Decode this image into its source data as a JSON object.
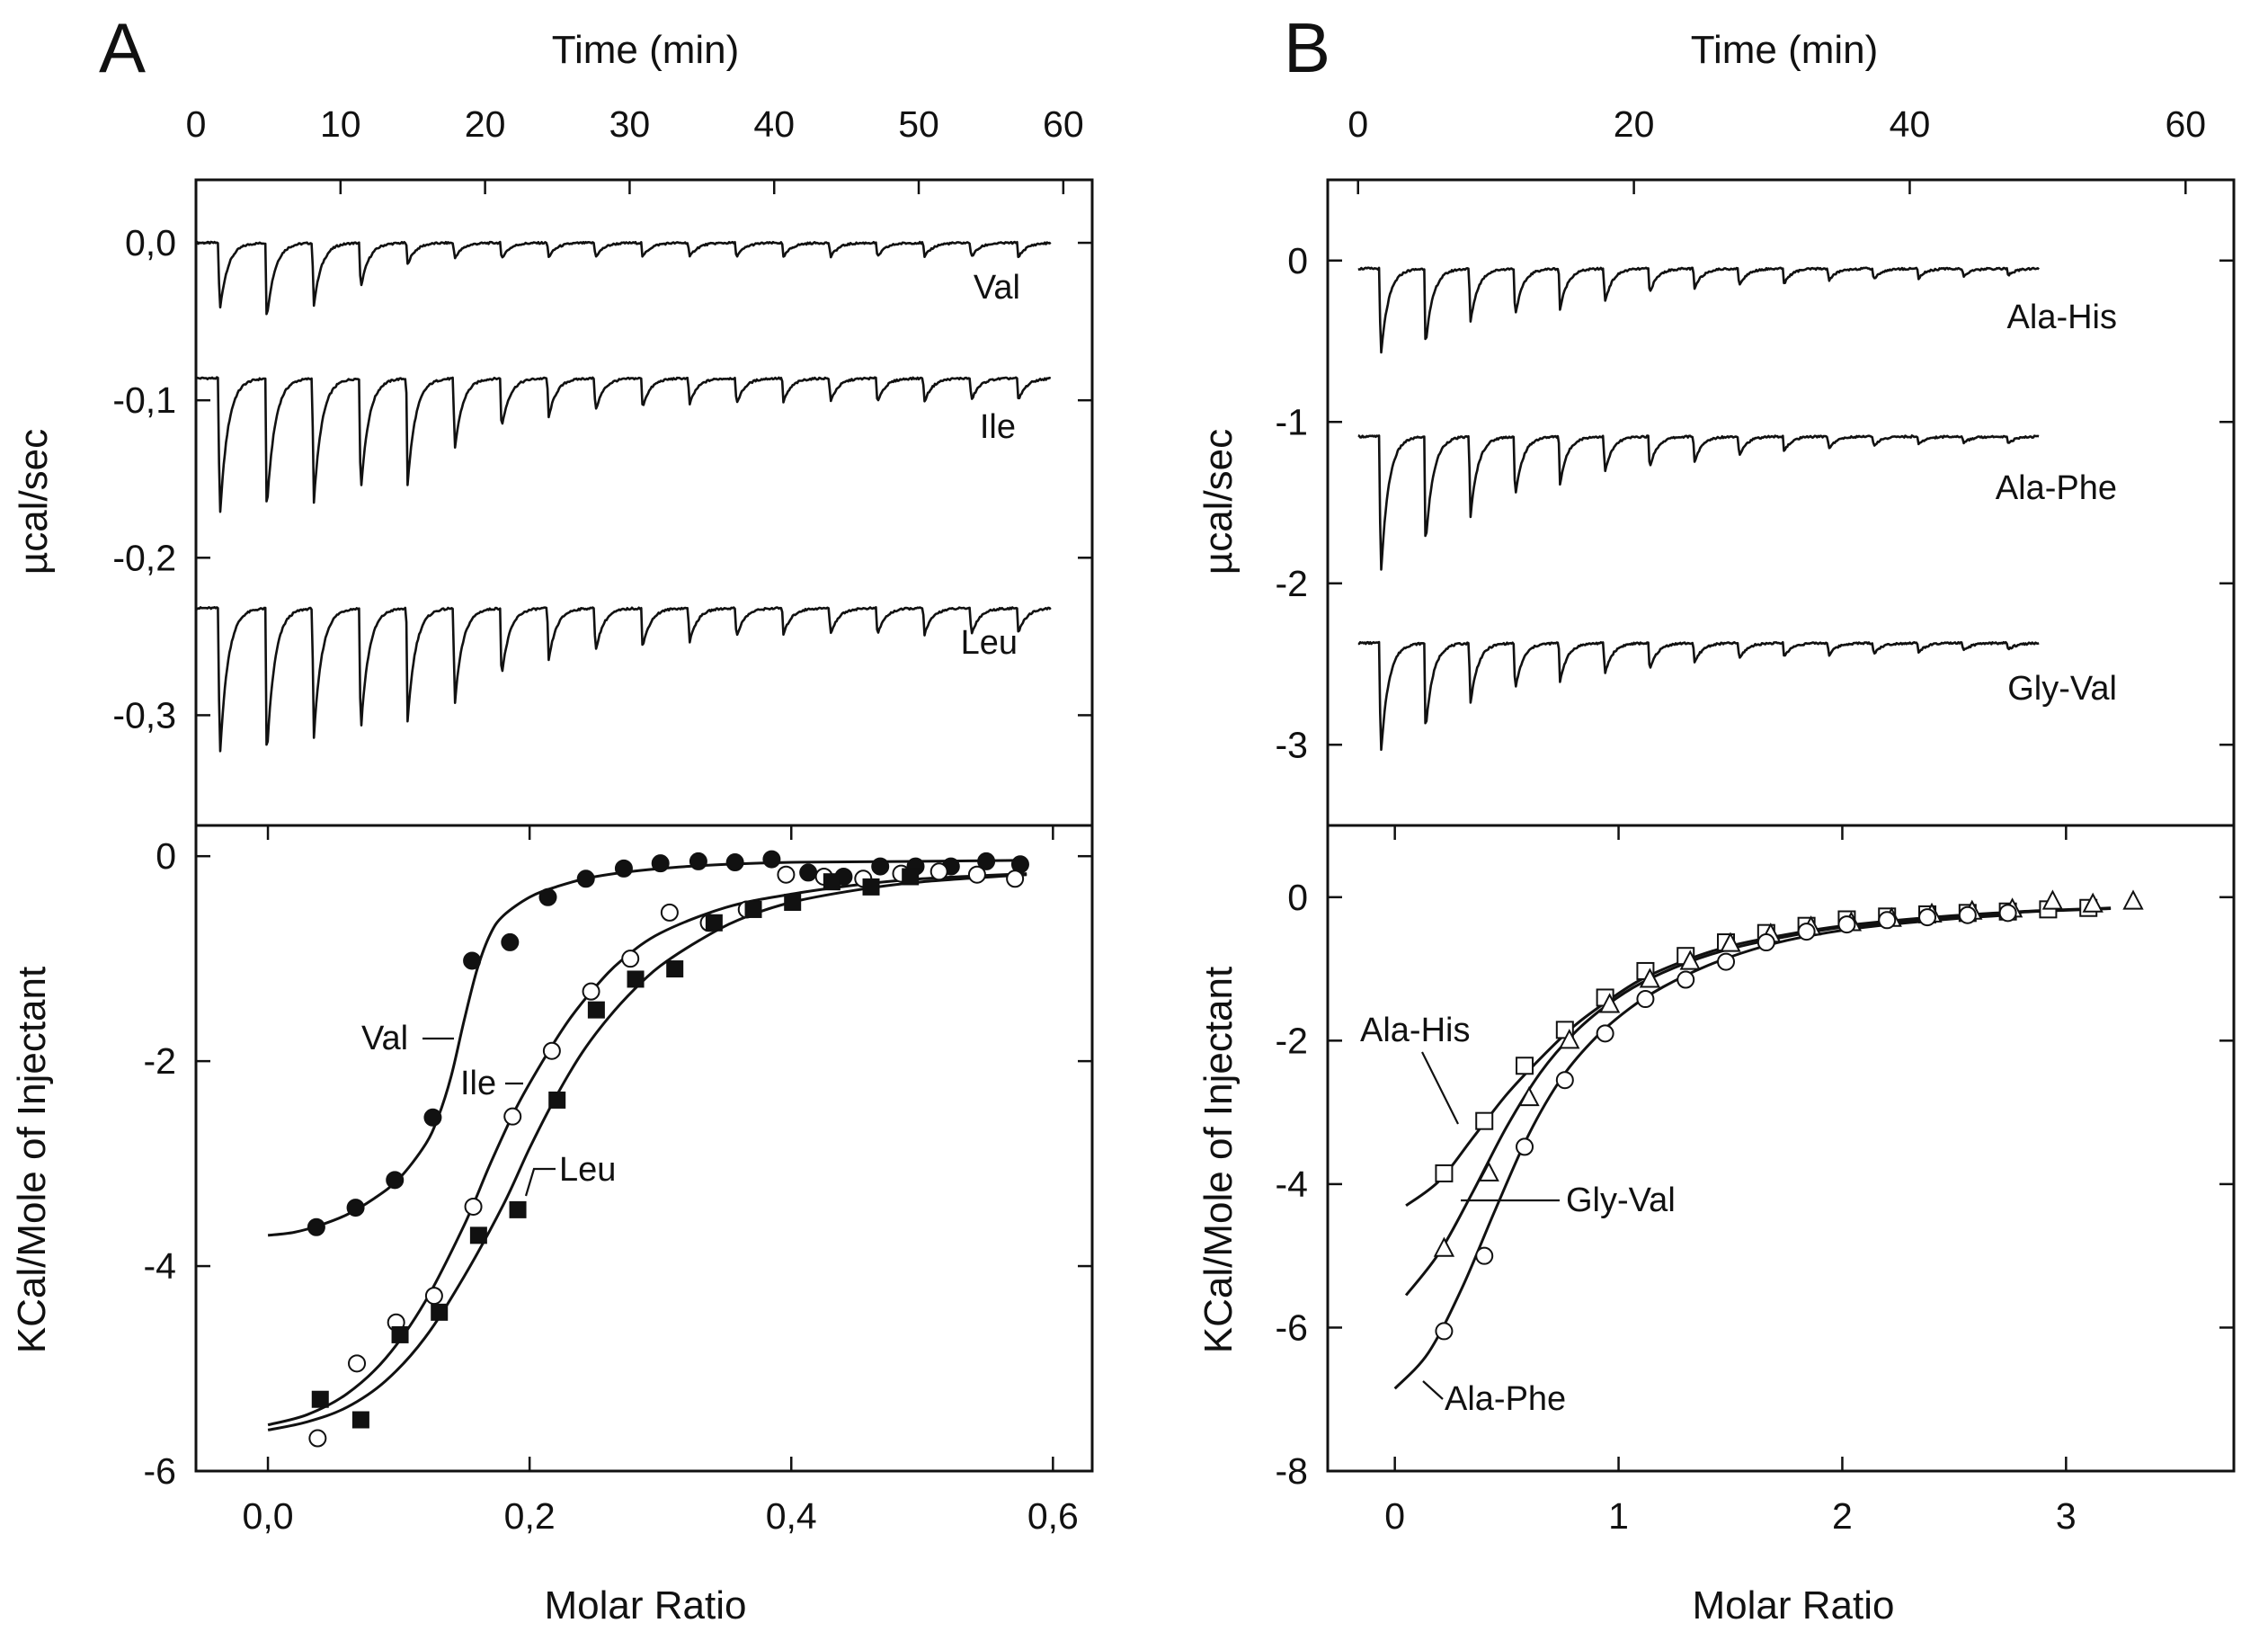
{
  "chart_data": [
    {
      "panel": "A",
      "type": "line",
      "top": {
        "xlabel": "Time (min)",
        "ylabel": "µcal/sec",
        "xticks": [
          "0",
          "10",
          "20",
          "30",
          "40",
          "50",
          "60"
        ],
        "yticks": [
          "0,0",
          "-0,1",
          "-0,2",
          "-0,3"
        ],
        "xlim": [
          0,
          62
        ],
        "ylim": [
          -0.37,
          0.04
        ],
        "grid": false,
        "interval_min": 3.25,
        "traces": [
          {
            "name": "Val",
            "baseline": 0.0,
            "peak_depths": [
              0.052,
              0.058,
              0.048,
              0.035,
              0.016,
              0.012,
              0.012,
              0.011,
              0.011,
              0.011,
              0.011,
              0.011,
              0.011,
              0.011,
              0.011,
              0.011,
              0.011,
              0.011
            ]
          },
          {
            "name": "Ile",
            "baseline": -0.086,
            "peak_depths": [
              0.108,
              0.101,
              0.096,
              0.088,
              0.08,
              0.055,
              0.038,
              0.03,
              0.025,
              0.022,
              0.02,
              0.02,
              0.018,
              0.018,
              0.018,
              0.018,
              0.017,
              0.017
            ]
          },
          {
            "name": "Leu",
            "baseline": -0.232,
            "peak_depths": [
              0.115,
              0.113,
              0.1,
              0.095,
              0.085,
              0.074,
              0.052,
              0.04,
              0.033,
              0.03,
              0.026,
              0.022,
              0.02,
              0.02,
              0.02,
              0.02,
              0.02,
              0.019
            ]
          }
        ]
      },
      "bottom": {
        "xlabel": "Molar Ratio",
        "ylabel": "KCal/Mole of Injectant",
        "xticks": [
          "0,0",
          "0,2",
          "0,4",
          "0,6"
        ],
        "yticks": [
          "0",
          "-2",
          "-4",
          "-6"
        ],
        "xlim": [
          -0.055,
          0.63
        ],
        "ylim": [
          -6.0,
          0.3
        ],
        "grid": false,
        "series": [
          {
            "name": "Val",
            "marker": "filled-circle",
            "x": [
              0.037,
              0.067,
              0.097,
              0.126,
              0.156,
              0.185,
              0.214,
              0.243,
              0.272,
              0.3,
              0.329,
              0.357,
              0.385,
              0.413,
              0.44,
              0.468,
              0.495,
              0.522,
              0.549,
              0.575
            ],
            "y": [
              -3.62,
              -3.43,
              -3.16,
              -2.55,
              -1.02,
              -0.84,
              -0.4,
              -0.22,
              -0.12,
              -0.07,
              -0.05,
              -0.06,
              -0.03,
              -0.16,
              -0.2,
              -0.1,
              -0.1,
              -0.1,
              -0.05,
              -0.08
            ]
          },
          {
            "name": "Ile",
            "marker": "open-circle",
            "x": [
              0.038,
              0.068,
              0.098,
              0.127,
              0.157,
              0.187,
              0.217,
              0.247,
              0.277,
              0.307,
              0.337,
              0.366,
              0.396,
              0.425,
              0.455,
              0.484,
              0.513,
              0.542,
              0.571
            ],
            "y": [
              -5.68,
              -4.95,
              -4.55,
              -4.29,
              -3.42,
              -2.54,
              -1.9,
              -1.32,
              -1.0,
              -0.55,
              -0.65,
              -0.52,
              -0.18,
              -0.2,
              -0.22,
              -0.17,
              -0.15,
              -0.18,
              -0.22
            ]
          },
          {
            "name": "Leu",
            "marker": "filled-square",
            "x": [
              0.04,
              0.071,
              0.101,
              0.131,
              0.161,
              0.191,
              0.221,
              0.251,
              0.281,
              0.311,
              0.341,
              0.371,
              0.401,
              0.431,
              0.461,
              0.491
            ],
            "y": [
              -5.3,
              -5.5,
              -4.67,
              -4.45,
              -3.7,
              -3.45,
              -2.38,
              -1.5,
              -1.2,
              -1.1,
              -0.65,
              -0.52,
              -0.45,
              -0.25,
              -0.3,
              -0.2
            ]
          }
        ],
        "fits": [
          {
            "name": "Val",
            "x": [
              0.0,
              0.02,
              0.04,
              0.06,
              0.08,
              0.1,
              0.12,
              0.13,
              0.14,
              0.15,
              0.16,
              0.17,
              0.18,
              0.2,
              0.22,
              0.25,
              0.3,
              0.35,
              0.4,
              0.5,
              0.58
            ],
            "y": [
              -3.7,
              -3.67,
              -3.6,
              -3.5,
              -3.35,
              -3.15,
              -2.82,
              -2.55,
              -2.15,
              -1.6,
              -1.1,
              -0.76,
              -0.58,
              -0.4,
              -0.3,
              -0.2,
              -0.12,
              -0.08,
              -0.06,
              -0.05,
              -0.04
            ]
          },
          {
            "name": "Ile",
            "x": [
              0.0,
              0.03,
              0.06,
              0.09,
              0.12,
              0.15,
              0.17,
              0.19,
              0.21,
              0.23,
              0.25,
              0.27,
              0.3,
              0.35,
              0.4,
              0.45,
              0.5,
              0.58
            ],
            "y": [
              -5.55,
              -5.45,
              -5.25,
              -4.9,
              -4.35,
              -3.6,
              -3.0,
              -2.45,
              -2.0,
              -1.6,
              -1.28,
              -1.02,
              -0.75,
              -0.5,
              -0.37,
              -0.28,
              -0.22,
              -0.17
            ]
          },
          {
            "name": "Leu",
            "x": [
              0.0,
              0.03,
              0.06,
              0.09,
              0.12,
              0.15,
              0.18,
              0.2,
              0.22,
              0.24,
              0.26,
              0.28,
              0.3,
              0.33,
              0.36,
              0.4,
              0.45,
              0.5,
              0.58
            ],
            "y": [
              -5.6,
              -5.52,
              -5.38,
              -5.12,
              -4.7,
              -4.1,
              -3.4,
              -2.85,
              -2.35,
              -1.92,
              -1.58,
              -1.3,
              -1.07,
              -0.82,
              -0.62,
              -0.45,
              -0.33,
              -0.25,
              -0.18
            ]
          }
        ],
        "annotations": [
          "Val",
          "Ile",
          "Leu"
        ]
      }
    },
    {
      "panel": "B",
      "type": "line",
      "top": {
        "xlabel": "Time (min)",
        "ylabel": "µcal/sec",
        "xticks": [
          "0",
          "20",
          "40",
          "60"
        ],
        "yticks": [
          "0",
          "-1",
          "-2",
          "-3"
        ],
        "xlim": [
          -2.2,
          63.5
        ],
        "ylim": [
          -3.5,
          0.5
        ],
        "grid": false,
        "interval_min": 3.25,
        "traces": [
          {
            "name": "Ala-His",
            "baseline": -0.05,
            "peak_depths": [
              0.66,
              0.56,
              0.4,
              0.35,
              0.3,
              0.25,
              0.18,
              0.15,
              0.13,
              0.11,
              0.09,
              0.08,
              0.07,
              0.06,
              0.05
            ]
          },
          {
            "name": "Ala-Phe",
            "baseline": -1.09,
            "peak_depths": [
              1.05,
              0.8,
              0.6,
              0.45,
              0.35,
              0.27,
              0.23,
              0.19,
              0.14,
              0.11,
              0.09,
              0.07,
              0.06,
              0.05,
              0.05
            ]
          },
          {
            "name": "Gly-Val",
            "baseline": -2.37,
            "peak_depths": [
              0.84,
              0.64,
              0.45,
              0.35,
              0.28,
              0.23,
              0.2,
              0.15,
              0.12,
              0.1,
              0.09,
              0.08,
              0.07,
              0.06,
              0.05
            ]
          }
        ]
      },
      "bottom": {
        "xlabel": "Molar Ratio",
        "ylabel": "KCal/Mole of Injectant",
        "xticks": [
          "0",
          "1",
          "2",
          "3"
        ],
        "yticks": [
          "0",
          "-2",
          "-4",
          "-6",
          "-8"
        ],
        "xlim": [
          -0.3,
          3.75
        ],
        "ylim": [
          -8.0,
          1.0
        ],
        "grid": false,
        "series": [
          {
            "name": "Ala-His",
            "marker": "open-square",
            "x": [
              0.22,
              0.4,
              0.58,
              0.76,
              0.94,
              1.12,
              1.3,
              1.48,
              1.66,
              1.84,
              2.02,
              2.2,
              2.38,
              2.56,
              2.74,
              2.92,
              3.1
            ],
            "y": [
              -3.85,
              -3.12,
              -2.35,
              -1.85,
              -1.4,
              -1.03,
              -0.82,
              -0.63,
              -0.5,
              -0.4,
              -0.31,
              -0.27,
              -0.24,
              -0.22,
              -0.2,
              -0.17,
              -0.15
            ]
          },
          {
            "name": "Gly-Val",
            "marker": "open-triangle",
            "x": [
              0.22,
              0.42,
              0.6,
              0.78,
              0.96,
              1.14,
              1.32,
              1.5,
              1.68,
              1.86,
              2.04,
              2.22,
              2.4,
              2.58,
              2.76,
              2.94,
              3.12,
              3.3
            ],
            "y": [
              -4.9,
              -3.85,
              -2.8,
              -2.0,
              -1.5,
              -1.15,
              -0.9,
              -0.65,
              -0.52,
              -0.42,
              -0.36,
              -0.3,
              -0.24,
              -0.2,
              -0.17,
              -0.06,
              -0.1,
              -0.06
            ]
          },
          {
            "name": "Ala-Phe",
            "marker": "open-circle",
            "x": [
              0.22,
              0.4,
              0.58,
              0.76,
              0.94,
              1.12,
              1.3,
              1.48,
              1.66,
              1.84,
              2.02,
              2.2,
              2.38,
              2.56,
              2.74
            ],
            "y": [
              -6.05,
              -5.0,
              -3.48,
              -2.55,
              -1.9,
              -1.42,
              -1.15,
              -0.9,
              -0.63,
              -0.48,
              -0.38,
              -0.32,
              -0.28,
              -0.25,
              -0.22
            ]
          }
        ],
        "fits": [
          {
            "name": "Ala-His",
            "x": [
              0.05,
              0.2,
              0.35,
              0.5,
              0.65,
              0.8,
              0.95,
              1.1,
              1.3,
              1.5,
              1.75,
              2.0,
              2.4,
              2.8,
              3.2
            ],
            "y": [
              -4.3,
              -3.95,
              -3.35,
              -2.75,
              -2.25,
              -1.8,
              -1.45,
              -1.15,
              -0.88,
              -0.68,
              -0.52,
              -0.4,
              -0.28,
              -0.2,
              -0.15
            ]
          },
          {
            "name": "Gly-Val",
            "x": [
              0.05,
              0.2,
              0.35,
              0.5,
              0.65,
              0.8,
              0.95,
              1.1,
              1.3,
              1.5,
              1.75,
              2.0,
              2.4,
              2.8,
              3.2
            ],
            "y": [
              -5.55,
              -4.95,
              -4.1,
              -3.2,
              -2.45,
              -1.9,
              -1.5,
              -1.2,
              -0.92,
              -0.72,
              -0.55,
              -0.42,
              -0.3,
              -0.21,
              -0.16
            ]
          },
          {
            "name": "Ala-Phe",
            "x": [
              0.0,
              0.15,
              0.3,
              0.45,
              0.6,
              0.75,
              0.9,
              1.05,
              1.2,
              1.4,
              1.6,
              1.8,
              2.1,
              2.5,
              2.8
            ],
            "y": [
              -6.85,
              -6.35,
              -5.45,
              -4.35,
              -3.3,
              -2.5,
              -1.95,
              -1.55,
              -1.25,
              -0.95,
              -0.73,
              -0.57,
              -0.42,
              -0.3,
              -0.24
            ]
          }
        ],
        "annotations": [
          "Ala-His",
          "Gly-Val",
          "Ala-Phe"
        ]
      }
    }
  ]
}
